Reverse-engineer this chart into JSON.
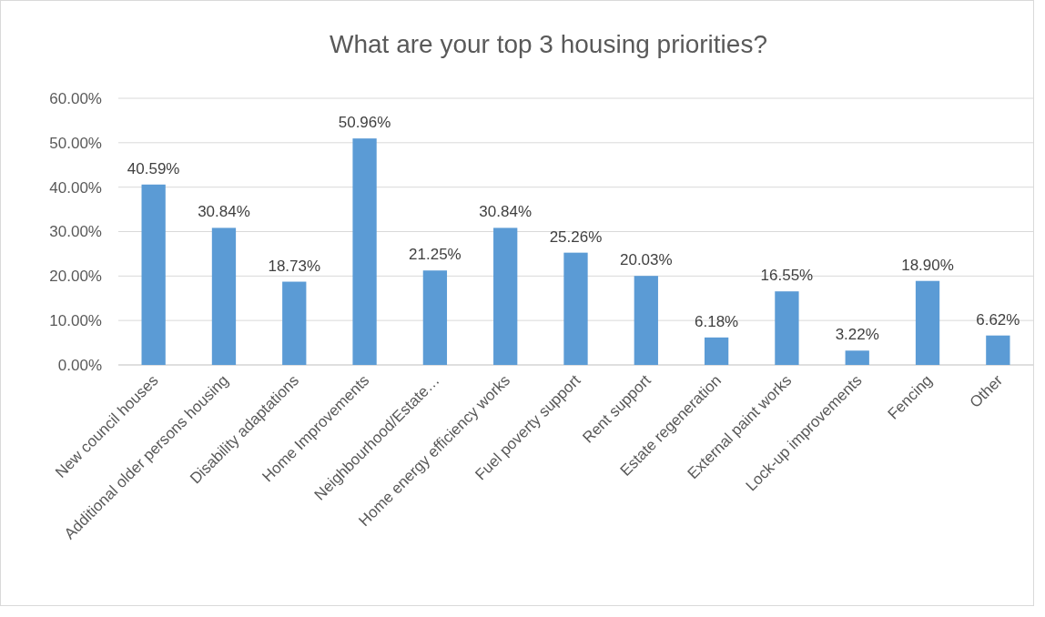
{
  "chart_data": {
    "type": "bar",
    "title": "What are your top 3 housing priorities?",
    "categories": [
      "New council houses",
      "Additional older persons housing",
      "Disability adaptations",
      "Home Improvements",
      "Neighbourhood/Estate…",
      "Home energy efficiency works",
      "Fuel poverty support",
      "Rent support",
      "Estate regeneration",
      "External paint works",
      "Lock-up improvements",
      "Fencing",
      "Other"
    ],
    "values": [
      40.59,
      30.84,
      18.73,
      50.96,
      21.25,
      30.84,
      25.26,
      20.03,
      6.18,
      16.55,
      3.22,
      18.9,
      6.62
    ],
    "value_labels": [
      "40.59%",
      "30.84%",
      "18.73%",
      "50.96%",
      "21.25%",
      "30.84%",
      "25.26%",
      "20.03%",
      "6.18%",
      "16.55%",
      "3.22%",
      "18.90%",
      "6.62%"
    ],
    "color": "#5b9bd5",
    "ylim": [
      0,
      60
    ],
    "yticks": [
      {
        "value": 0,
        "label": "0.00%"
      },
      {
        "value": 10,
        "label": "10.00%"
      },
      {
        "value": 20,
        "label": "20.00%"
      },
      {
        "value": 30,
        "label": "30.00%"
      },
      {
        "value": 40,
        "label": "40.00%"
      },
      {
        "value": 50,
        "label": "50.00%"
      },
      {
        "value": 60,
        "label": "60.00%"
      }
    ],
    "grid": "y"
  }
}
